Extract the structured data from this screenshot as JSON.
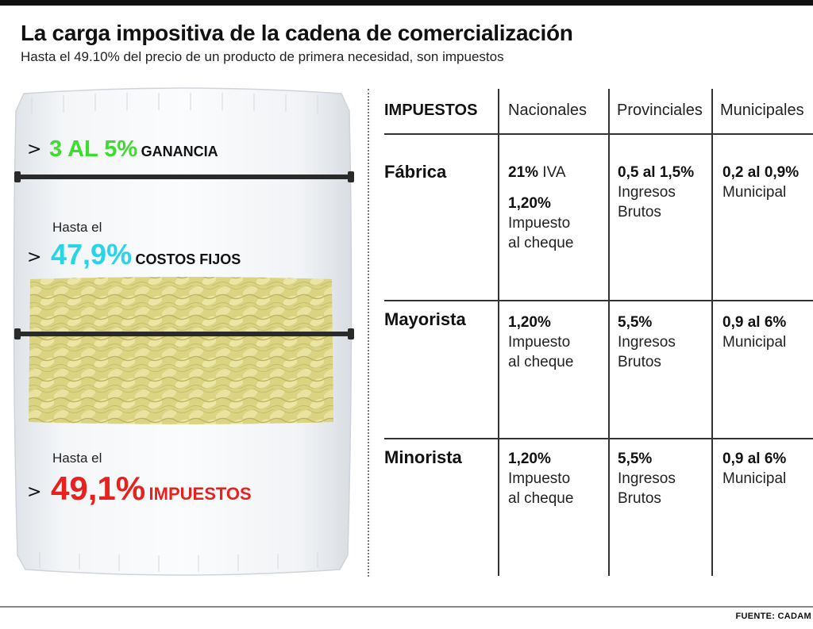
{
  "header": {
    "title": "La carga impositiva de la cadena de comercialización",
    "subtitle": "Hasta el 49.10% del precio de un producto de primera necesidad, son impuestos"
  },
  "bag": {
    "ganancia": {
      "percent": "3 AL 5%",
      "label": "GANANCIA",
      "color": "#3ddc2e"
    },
    "costos": {
      "prefix": "Hasta el",
      "percent": "47,9%",
      "label": "COSTOS FIJOS",
      "color": "#2ad4e8"
    },
    "impuestos": {
      "prefix": "Hasta el",
      "percent": "49,1%",
      "label": "IMPUESTOS",
      "color": "#e8201e"
    }
  },
  "table": {
    "headers": [
      "IMPUESTOS",
      "Nacionales",
      "Provinciales",
      "Municipales"
    ],
    "rows": [
      {
        "name": "Fábrica",
        "nacionales": {
          "line1_bold": "21%",
          "line1_rest": " IVA",
          "line2_bold": "1,20%",
          "line3": "Impuesto",
          "line4": "al cheque"
        },
        "provinciales": {
          "bold": "0,5 al 1,5%",
          "line2": "Ingresos",
          "line3": "Brutos"
        },
        "municipales": {
          "bold": "0,2 al 0,9%",
          "line2": "Municipal"
        }
      },
      {
        "name": "Mayorista",
        "nacionales": {
          "bold": "1,20%",
          "line2": "Impuesto",
          "line3": "al cheque"
        },
        "provinciales": {
          "bold": "5,5%",
          "line2": "Ingresos",
          "line3": "Brutos"
        },
        "municipales": {
          "bold": "0,9 al 6%",
          "line2": "Municipal"
        }
      },
      {
        "name": "Minorista",
        "nacionales": {
          "bold": "1,20%",
          "line2": "Impuesto",
          "line3": "al cheque"
        },
        "provinciales": {
          "bold": "5,5%",
          "line2": "Ingresos",
          "line3": "Brutos"
        },
        "municipales": {
          "bold": "0,9 al 6%",
          "line2": "Municipal"
        }
      }
    ]
  },
  "footer": {
    "source": "FUENTE: CADAM"
  },
  "icons": {
    "pointer": "chevron-right-icon"
  },
  "colors": {
    "pasta": "#d8d27a",
    "bag": "#eef1f4"
  }
}
